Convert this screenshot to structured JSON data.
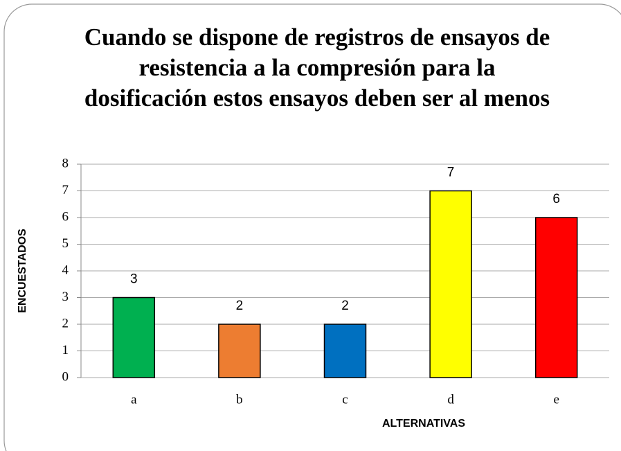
{
  "chart_data": {
    "type": "bar",
    "title": "Cuando se dispone de registros de ensayos de resistencia a la compresión para la dosificación estos ensayos deben ser al menos",
    "xlabel": "ALTERNATIVAS",
    "ylabel": "ENCUESTADOS",
    "categories": [
      "a",
      "b",
      "c",
      "d",
      "e"
    ],
    "values": [
      3,
      2,
      2,
      7,
      6
    ],
    "colors": [
      "#00b050",
      "#ed7d31",
      "#0070c0",
      "#ffff00",
      "#ff0000"
    ],
    "ylim": [
      0,
      8
    ],
    "yticks": [
      0,
      1,
      2,
      3,
      4,
      5,
      6,
      7,
      8
    ],
    "grid": true
  }
}
